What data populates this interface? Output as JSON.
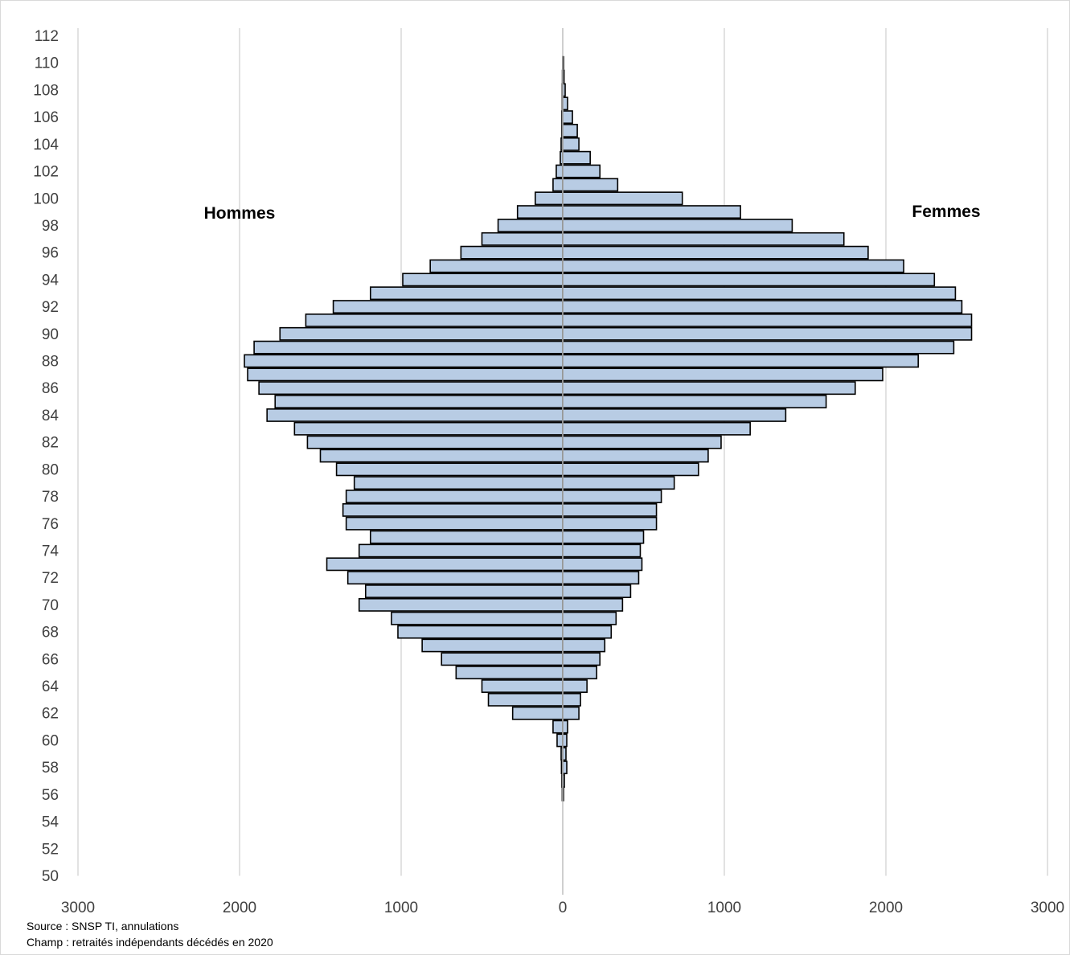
{
  "chart_data": {
    "type": "bar",
    "orientation": "horizontal-pyramid",
    "title": "",
    "xlabel": "",
    "ylabel": "",
    "xlim": [
      -3000,
      3000
    ],
    "ylim": [
      50,
      112
    ],
    "x_ticks": [
      -3000,
      -2000,
      -1000,
      0,
      1000,
      2000,
      3000
    ],
    "x_tick_labels": [
      "3000",
      "2000",
      "1000",
      "0",
      "1000",
      "2000",
      "3000"
    ],
    "y_ticks": [
      50,
      52,
      54,
      56,
      58,
      60,
      62,
      64,
      66,
      68,
      70,
      72,
      74,
      76,
      78,
      80,
      82,
      84,
      86,
      88,
      90,
      92,
      94,
      96,
      98,
      100,
      102,
      104,
      106,
      108,
      110,
      112
    ],
    "grid": "vertical",
    "bar_color": "#b8cce4",
    "bar_edge_color": "#000000",
    "series_labels": {
      "left": "Hommes",
      "right": "Femmes"
    },
    "ages": [
      56,
      57,
      58,
      59,
      60,
      61,
      62,
      63,
      64,
      65,
      66,
      67,
      68,
      69,
      70,
      71,
      72,
      73,
      74,
      75,
      76,
      77,
      78,
      79,
      80,
      81,
      82,
      83,
      84,
      85,
      86,
      87,
      88,
      89,
      90,
      91,
      92,
      93,
      94,
      95,
      96,
      97,
      98,
      99,
      100,
      101,
      102,
      103,
      104,
      105,
      106,
      107,
      108,
      109,
      110
    ],
    "series": [
      {
        "name": "Hommes",
        "values": [
          3,
          5,
          8,
          10,
          35,
          60,
          310,
          460,
          500,
          660,
          750,
          870,
          1020,
          1060,
          1260,
          1220,
          1330,
          1460,
          1260,
          1190,
          1340,
          1360,
          1340,
          1290,
          1400,
          1500,
          1580,
          1660,
          1830,
          1780,
          1880,
          1950,
          1970,
          1910,
          1750,
          1590,
          1420,
          1190,
          990,
          820,
          630,
          500,
          400,
          280,
          170,
          60,
          40,
          15,
          10,
          5,
          5,
          3,
          3,
          2,
          1
        ]
      },
      {
        "name": "Femmes",
        "values": [
          5,
          10,
          25,
          20,
          25,
          30,
          100,
          110,
          150,
          210,
          230,
          260,
          300,
          330,
          370,
          420,
          470,
          490,
          480,
          500,
          580,
          580,
          610,
          690,
          840,
          900,
          980,
          1160,
          1380,
          1630,
          1810,
          1980,
          2200,
          2420,
          2530,
          2530,
          2470,
          2430,
          2300,
          2110,
          1890,
          1740,
          1420,
          1100,
          740,
          340,
          230,
          170,
          100,
          90,
          60,
          30,
          15,
          8,
          5
        ]
      }
    ]
  },
  "notes": {
    "source": "Source : SNSP TI, annulations",
    "scope": "Champ : retraités indépendants décédés en 2020"
  }
}
